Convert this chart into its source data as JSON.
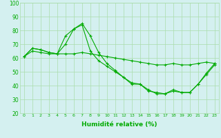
{
  "line1": {
    "x": [
      0,
      1,
      2,
      3,
      4,
      5,
      6,
      7,
      8,
      9,
      10,
      11,
      12,
      13,
      14,
      15,
      16,
      17,
      18,
      19,
      20,
      21,
      22,
      23
    ],
    "y": [
      61,
      67,
      66,
      64,
      63,
      70,
      81,
      85,
      76,
      64,
      56,
      51,
      46,
      41,
      41,
      36,
      35,
      34,
      37,
      35,
      35,
      41,
      48,
      55
    ]
  },
  "line2": {
    "x": [
      0,
      1,
      2,
      3,
      4,
      5,
      6,
      7,
      8,
      9,
      10,
      11,
      12,
      13,
      14,
      15,
      16,
      17,
      18,
      19,
      20,
      21,
      22,
      23
    ],
    "y": [
      61,
      67,
      66,
      64,
      63,
      76,
      81,
      84,
      65,
      58,
      54,
      50,
      46,
      42,
      41,
      37,
      34,
      34,
      36,
      35,
      35,
      41,
      49,
      56
    ]
  },
  "line3": {
    "x": [
      0,
      1,
      2,
      3,
      4,
      5,
      6,
      7,
      8,
      9,
      10,
      11,
      12,
      13,
      14,
      15,
      16,
      17,
      18,
      19,
      20,
      21,
      22,
      23
    ],
    "y": [
      61,
      65,
      64,
      63,
      63,
      63,
      63,
      64,
      63,
      62,
      61,
      60,
      59,
      58,
      57,
      56,
      55,
      55,
      56,
      55,
      55,
      56,
      57,
      56
    ]
  },
  "xlabel": "Humidité relative (%)",
  "xlim": [
    -0.5,
    23.5
  ],
  "ylim": [
    20,
    100
  ],
  "yticks": [
    20,
    30,
    40,
    50,
    60,
    70,
    80,
    90,
    100
  ],
  "xticks": [
    0,
    1,
    2,
    3,
    4,
    5,
    6,
    7,
    8,
    9,
    10,
    11,
    12,
    13,
    14,
    15,
    16,
    17,
    18,
    19,
    20,
    21,
    22,
    23
  ],
  "line_color": "#00aa00",
  "marker": "+",
  "bg_color": "#d4f0f0",
  "grid_color": "#aaddaa",
  "marker_size": 3,
  "linewidth": 0.8
}
